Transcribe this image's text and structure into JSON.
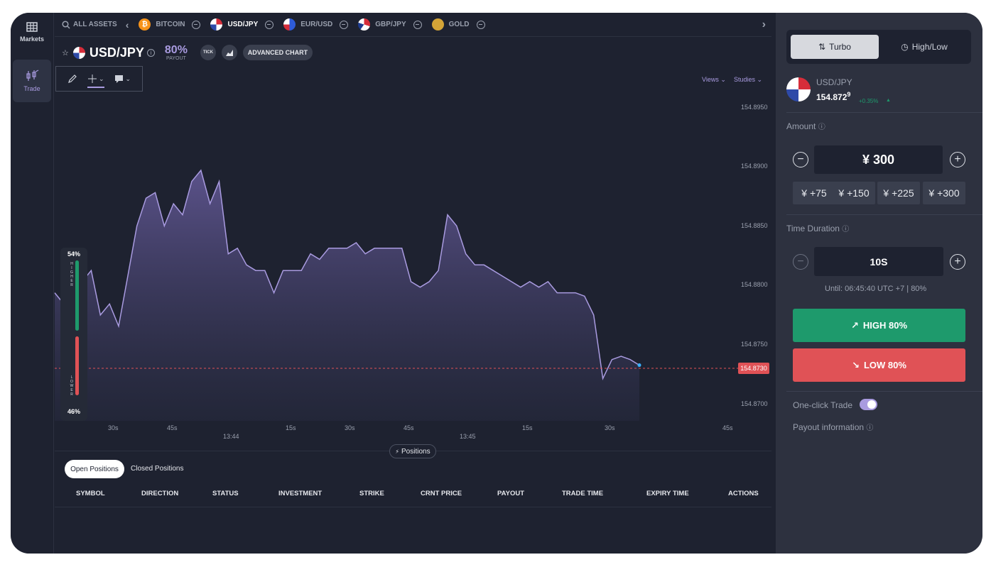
{
  "rail": {
    "markets_label": "Markets",
    "trade_label": "Trade"
  },
  "assets_bar": {
    "all_assets": "ALL ASSETS",
    "items": [
      {
        "label": "BITCOIN",
        "color": "#f7931a"
      },
      {
        "label": "USD/JPY",
        "color": "#d62d3a",
        "selected": true
      },
      {
        "label": "EUR/USD",
        "color": "#2e5bd8"
      },
      {
        "label": "GBP/JPY",
        "color": "#d62d3a"
      },
      {
        "label": "GOLD",
        "color": "#d4a437"
      }
    ]
  },
  "chart_header": {
    "symbol": "USD/JPY",
    "payout_percent": "80%",
    "payout_label": "PAYOUT",
    "tick_label": "TICK",
    "advanced_chart_label": "ADVANCED CHART",
    "views_label": "Views",
    "studies_label": "Studies"
  },
  "sentiment": {
    "higher_percent": "54%",
    "higher_word": "HIGHER",
    "lower_percent": "46%",
    "lower_word": "LOWER",
    "higher_fraction": 0.54
  },
  "chart_data": {
    "type": "area",
    "title": "",
    "y_ticks": [
      "154.8950",
      "154.8900",
      "154.8850",
      "154.8800",
      "154.8750",
      "154.8700"
    ],
    "ylim": [
      154.868,
      154.897
    ],
    "current_price": "154.8730",
    "x_ticks": [
      "30s",
      "45s",
      "13:44",
      "15s",
      "30s",
      "45s",
      "13:45",
      "15s",
      "30s",
      "45s"
    ],
    "values": [
      154.8795,
      154.8785,
      154.881,
      154.8805,
      154.8815,
      154.8775,
      154.8785,
      154.8765,
      154.881,
      154.8855,
      154.888,
      154.8885,
      154.8855,
      154.8875,
      154.8865,
      154.8895,
      154.8905,
      154.8875,
      154.8895,
      154.883,
      154.8835,
      154.882,
      154.8815,
      154.8815,
      154.8795,
      154.8815,
      154.8815,
      154.8815,
      154.883,
      154.8825,
      154.8835,
      154.8835,
      154.8835,
      154.884,
      154.883,
      154.8835,
      154.8835,
      154.8835,
      154.8835,
      154.8805,
      154.88,
      154.8805,
      154.8815,
      154.8865,
      154.8855,
      154.883,
      154.882,
      154.882,
      154.8815,
      154.881,
      154.8805,
      154.88,
      154.8805,
      154.88,
      154.8805,
      154.8795,
      154.8795,
      154.8795,
      154.8792,
      154.8775,
      154.8718,
      154.8735,
      154.8738,
      154.8735,
      154.873
    ],
    "series_color": "#a99be0"
  },
  "positions": {
    "toggle_label": "Positions",
    "tab_open": "Open Positions",
    "tab_closed": "Closed Positions",
    "columns": [
      "SYMBOL",
      "DIRECTION",
      "STATUS",
      "INVESTMENT",
      "STRIKE",
      "CRNT PRICE",
      "PAYOUT",
      "TRADE TIME",
      "EXPIRY TIME",
      "ACTIONS"
    ]
  },
  "panel": {
    "mode_turbo": "Turbo",
    "mode_highlow": "High/Low",
    "pair": "USD/JPY",
    "price_main": "154.872",
    "price_sup": "9",
    "change": "+0.35%",
    "amount_label": "Amount",
    "amount_value": "¥ 300",
    "quick_amounts": [
      "¥ +75",
      "¥ +150",
      "¥ +225",
      "¥ +300"
    ],
    "duration_label": "Time Duration",
    "duration_value": "10S",
    "until_text": "Until: 06:45:40 UTC +7",
    "until_payout": "80%",
    "high_button": "HIGH 80%",
    "low_button": "LOW 80%",
    "one_click_label": "One-click Trade",
    "one_click_on": true,
    "payout_info_label": "Payout information",
    "colors": {
      "high": "#1e9a6c",
      "low": "#e05256",
      "accent": "#a99be0"
    }
  }
}
